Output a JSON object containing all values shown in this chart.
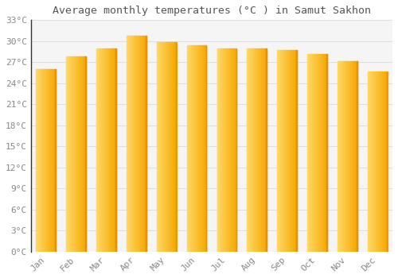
{
  "title": "Average monthly temperatures (°C ) in Samut Sakhon",
  "months": [
    "Jan",
    "Feb",
    "Mar",
    "Apr",
    "May",
    "Jun",
    "Jul",
    "Aug",
    "Sep",
    "Oct",
    "Nov",
    "Dec"
  ],
  "temperatures": [
    26.0,
    27.8,
    29.0,
    30.8,
    29.9,
    29.4,
    29.0,
    29.0,
    28.7,
    28.2,
    27.1,
    25.7
  ],
  "bar_color_left": "#FFD966",
  "bar_color_right": "#F5A800",
  "background_color": "#FFFFFF",
  "plot_bg_color": "#F5F5F5",
  "grid_color": "#DDDDDD",
  "text_color": "#888888",
  "title_color": "#555555",
  "ylim": [
    0,
    33
  ],
  "yticks": [
    0,
    3,
    6,
    9,
    12,
    15,
    18,
    21,
    24,
    27,
    30,
    33
  ]
}
